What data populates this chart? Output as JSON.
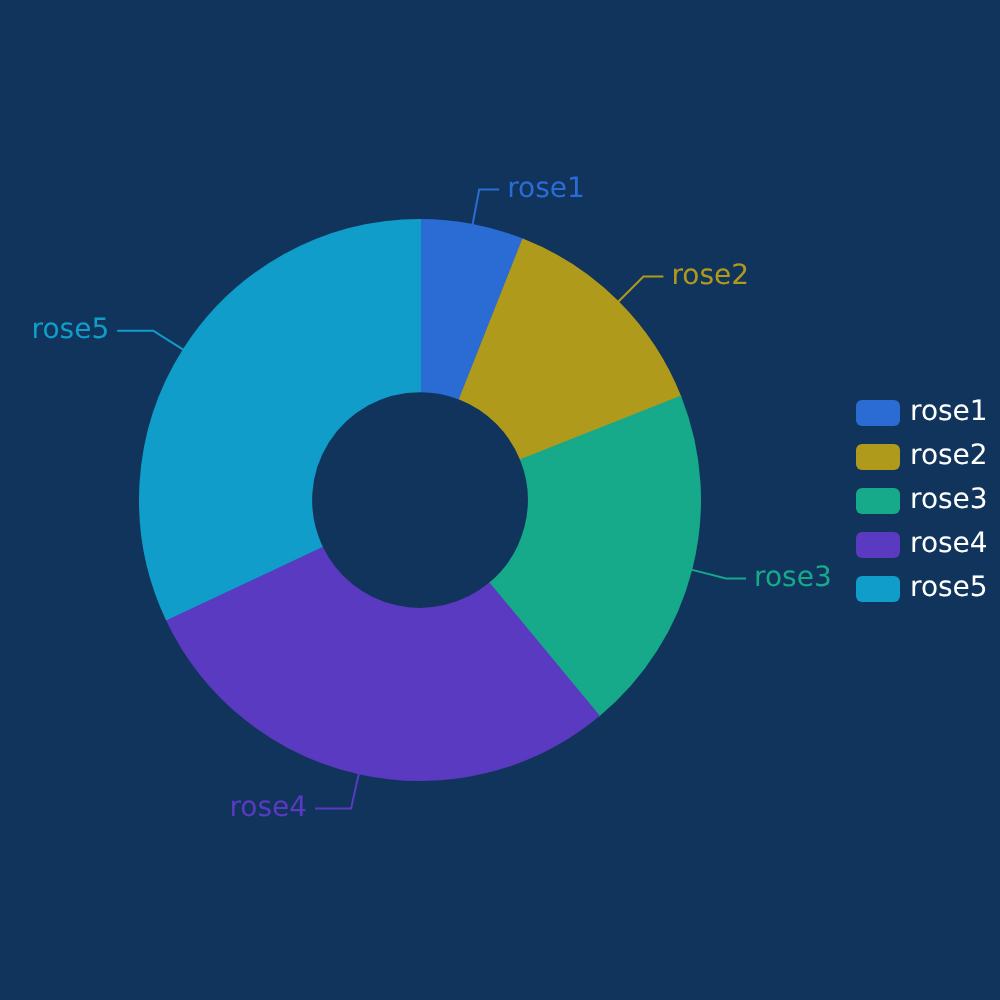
{
  "chart_data": {
    "type": "donut",
    "categories": [
      "rose1",
      "rose2",
      "rose3",
      "rose4",
      "rose5"
    ],
    "values": [
      6,
      13,
      20,
      29,
      32
    ],
    "colors": [
      "#2b6cd4",
      "#b09a1c",
      "#16a98a",
      "#5a3ac0",
      "#109dc9"
    ],
    "legend": "right"
  }
}
